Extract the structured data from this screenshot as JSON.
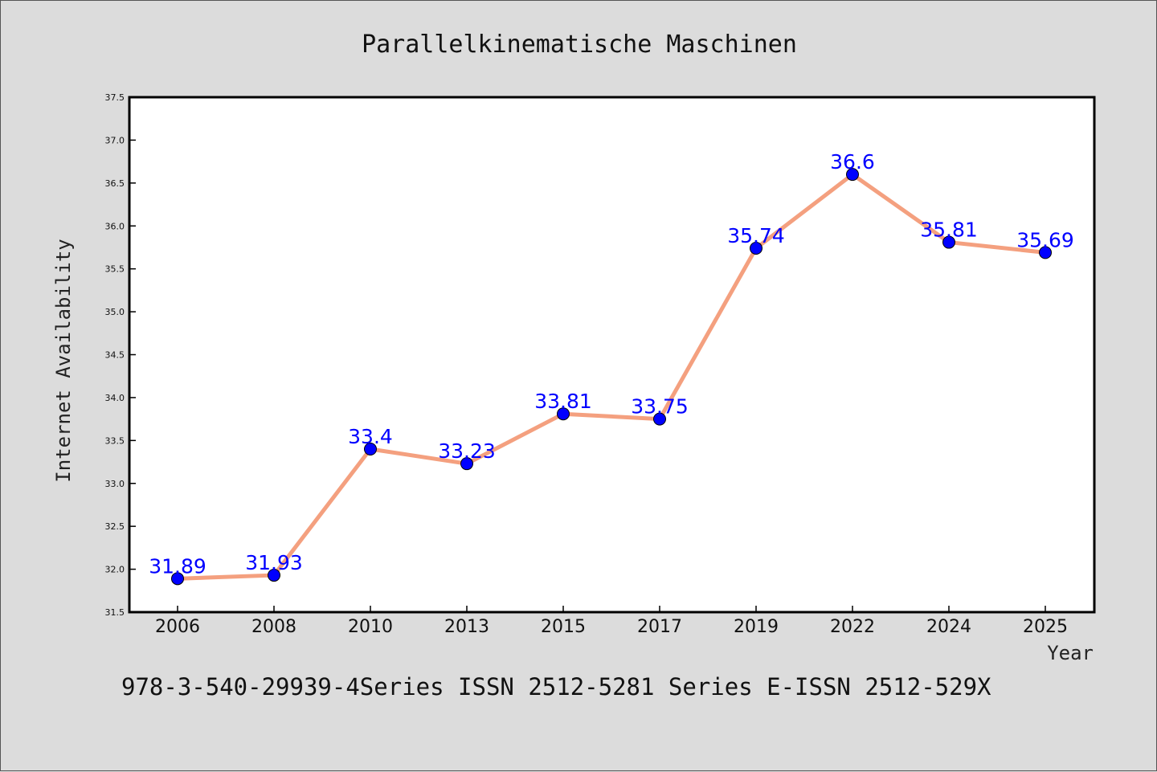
{
  "chart_data": {
    "type": "line",
    "title": "Parallelkinematische Maschinen",
    "xlabel": "Year",
    "ylabel": "Internet Availability",
    "categories": [
      "2006",
      "2008",
      "2010",
      "2013",
      "2015",
      "2017",
      "2019",
      "2022",
      "2024",
      "2025"
    ],
    "series": [
      {
        "values": [
          31.89,
          31.93,
          33.4,
          33.23,
          33.81,
          33.75,
          35.74,
          36.6,
          35.81,
          35.69
        ],
        "data_labels": [
          "31.89",
          "31.93",
          "33.4",
          "33.23",
          "33.81",
          "33.75",
          "35.74",
          "36.6",
          "35.81",
          "35.69"
        ],
        "line_color": "#f4a07f",
        "marker_color": "#0000ff"
      }
    ],
    "ylim": [
      31.5,
      37.5
    ],
    "yticks": [
      "31.5",
      "32.0",
      "32.5",
      "33.0",
      "33.5",
      "34.0",
      "34.5",
      "35.0",
      "35.5",
      "36.0",
      "36.5",
      "37.0",
      "37.5"
    ],
    "grid": false,
    "legend": "none"
  },
  "footer": {
    "text": "978-3-540-29939-4Series ISSN 2512-5281 Series E-ISSN 2512-529X"
  },
  "colors": {
    "background": "#dcdcdc",
    "plot_background": "#ffffff",
    "data_label": "#0000ff"
  }
}
